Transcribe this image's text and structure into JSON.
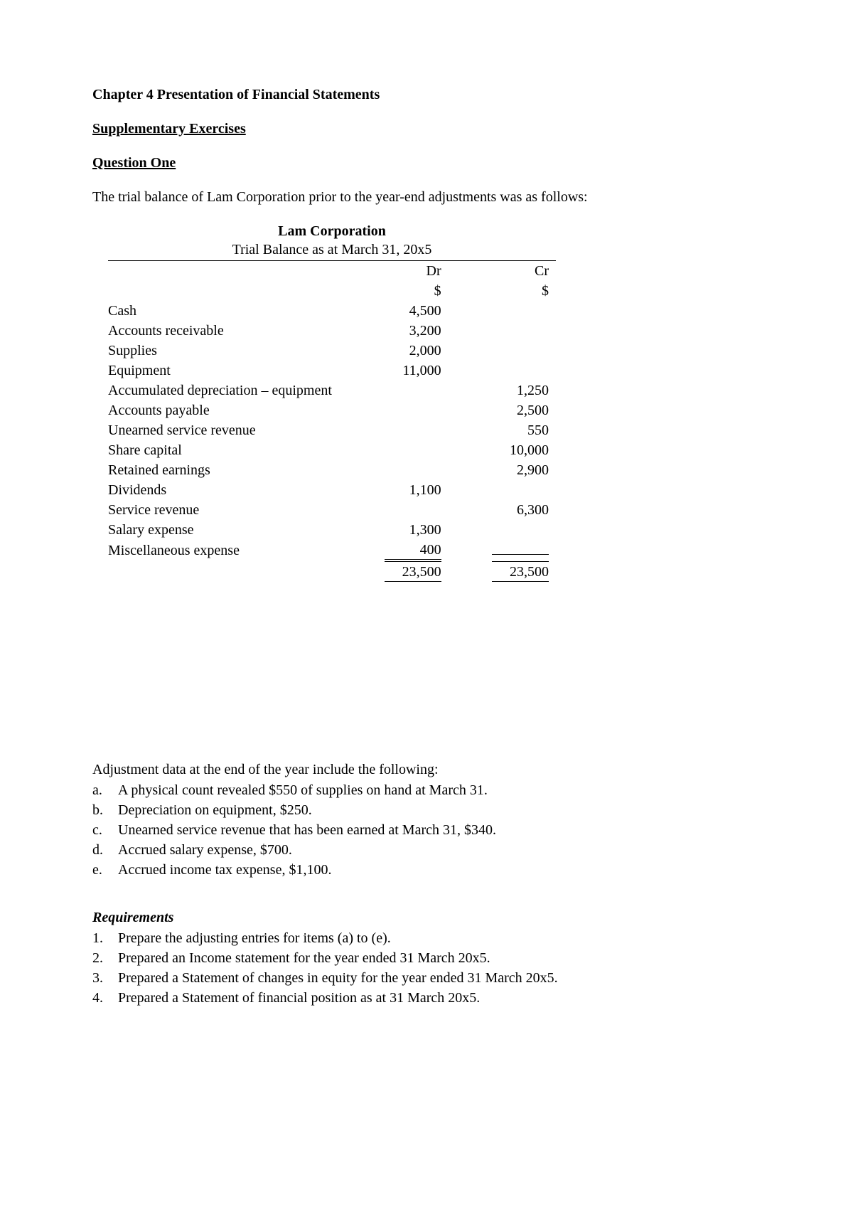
{
  "chapter_title": "Chapter 4 Presentation of Financial Statements",
  "supplementary_heading": "Supplementary Exercises",
  "question_heading": "Question One",
  "intro_text": "The trial balance of Lam Corporation prior to the year-end adjustments was as follows:",
  "trial_balance": {
    "company": "Lam Corporation",
    "subtitle": "Trial Balance as at March 31, 20x5",
    "dr_label": "Dr",
    "cr_label": "Cr",
    "currency": "$",
    "rows": [
      {
        "account": "Cash",
        "dr": "4,500",
        "cr": ""
      },
      {
        "account": "Accounts receivable",
        "dr": "3,200",
        "cr": ""
      },
      {
        "account": "Supplies",
        "dr": "2,000",
        "cr": ""
      },
      {
        "account": "Equipment",
        "dr": "11,000",
        "cr": ""
      },
      {
        "account": "Accumulated depreciation – equipment",
        "dr": "",
        "cr": "1,250"
      },
      {
        "account": "Accounts payable",
        "dr": "",
        "cr": "2,500"
      },
      {
        "account": "Unearned service revenue",
        "dr": "",
        "cr": "550"
      },
      {
        "account": "Share capital",
        "dr": "",
        "cr": "10,000"
      },
      {
        "account": "Retained earnings",
        "dr": "",
        "cr": "2,900"
      },
      {
        "account": "Dividends",
        "dr": "1,100",
        "cr": ""
      },
      {
        "account": "Service revenue",
        "dr": "",
        "cr": "6,300"
      },
      {
        "account": "Salary expense",
        "dr": "1,300",
        "cr": ""
      },
      {
        "account": "Miscellaneous expense",
        "dr": "400",
        "cr": ""
      }
    ],
    "total_dr": "23,500",
    "total_cr": "23,500"
  },
  "adjustments": {
    "intro": "Adjustment data at the end of the year include the following:",
    "items": [
      {
        "label": "a.",
        "text": "A physical count revealed $550 of supplies on hand at March 31."
      },
      {
        "label": "b.",
        "text": "Depreciation on equipment, $250."
      },
      {
        "label": "c.",
        "text": "Unearned service revenue that has been earned at March 31, $340."
      },
      {
        "label": "d.",
        "text": "Accrued salary expense, $700."
      },
      {
        "label": "e.",
        "text": "Accrued income tax expense, $1,100."
      }
    ]
  },
  "requirements": {
    "heading": "Requirements",
    "items": [
      {
        "label": "1.",
        "text": "Prepare the adjusting entries for items (a) to (e)."
      },
      {
        "label": "2.",
        "text": "Prepared an Income statement for the year ended 31 March 20x5."
      },
      {
        "label": "3.",
        "text": "Prepared a Statement of changes in equity for the year ended 31 March 20x5."
      },
      {
        "label": "4.",
        "text": "Prepared a Statement of financial position as at 31 March 20x5."
      }
    ]
  },
  "style": {
    "font_family": "Times New Roman",
    "font_size_pt": 12,
    "text_color": "#000000",
    "background_color": "#ffffff",
    "rule_color": "#000000"
  }
}
